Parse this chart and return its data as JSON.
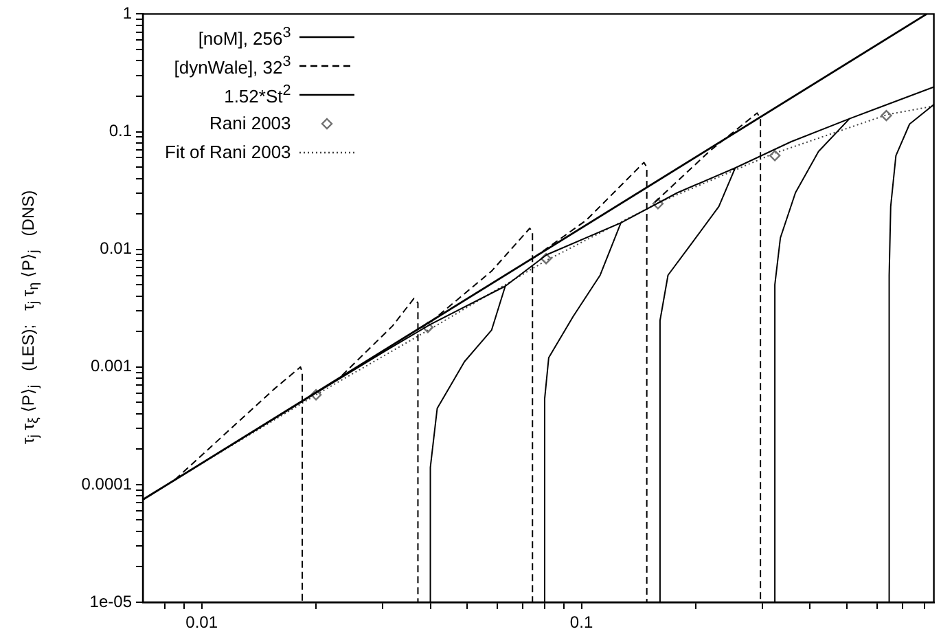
{
  "chart_data": {
    "type": "line",
    "ylabel": "τ$_{j}$ τ$_{ξ}$ ⟨P⟩$_{j}$   (LES);   τ$_{j}$ τ$_{η}$ ⟨P⟩$_{j}$   (DNS)",
    "log": "xy",
    "grid": false,
    "legend": "top left",
    "xlim": [
      0.007,
      0.847
    ],
    "ylim": [
      1e-05,
      1
    ],
    "xticks": [
      {
        "value": 0.008,
        "label": null
      },
      {
        "value": 0.009,
        "label": null
      },
      0.01,
      {
        "value": 0.02,
        "label": null
      },
      {
        "value": 0.03,
        "label": null
      },
      {
        "value": 0.04,
        "label": null
      },
      {
        "value": 0.05,
        "label": null
      },
      {
        "value": 0.06,
        "label": null
      },
      {
        "value": 0.07,
        "label": null
      },
      {
        "value": 0.08,
        "label": null
      },
      {
        "value": 0.09,
        "label": null
      },
      0.1,
      {
        "value": 0.2,
        "label": null
      },
      {
        "value": 0.3,
        "label": null
      },
      {
        "value": 0.4,
        "label": null
      },
      {
        "value": 0.5,
        "label": null
      },
      {
        "value": 0.6,
        "label": null
      },
      {
        "value": 0.7,
        "label": null
      },
      {
        "value": 0.8,
        "label": null
      }
    ],
    "yticks": [
      {
        "value": 1e-05,
        "label": "1e-05"
      },
      {
        "value": 2e-05,
        "label": null
      },
      {
        "value": 3e-05,
        "label": null
      },
      {
        "value": 4e-05,
        "label": null
      },
      {
        "value": 5e-05,
        "label": null
      },
      {
        "value": 6e-05,
        "label": null
      },
      {
        "value": 7e-05,
        "label": null
      },
      {
        "value": 8e-05,
        "label": null
      },
      {
        "value": 9e-05,
        "label": null
      },
      0.0001,
      {
        "value": 0.0002,
        "label": null
      },
      {
        "value": 0.0003,
        "label": null
      },
      {
        "value": 0.0004,
        "label": null
      },
      {
        "value": 0.0005,
        "label": null
      },
      {
        "value": 0.0006,
        "label": null
      },
      {
        "value": 0.0007,
        "label": null
      },
      {
        "value": 0.0008,
        "label": null
      },
      {
        "value": 0.0009,
        "label": null
      },
      0.001,
      {
        "value": 0.002,
        "label": null
      },
      {
        "value": 0.003,
        "label": null
      },
      {
        "value": 0.004,
        "label": null
      },
      {
        "value": 0.005,
        "label": null
      },
      {
        "value": 0.006,
        "label": null
      },
      {
        "value": 0.007,
        "label": null
      },
      {
        "value": 0.008,
        "label": null
      },
      {
        "value": 0.009,
        "label": null
      },
      0.01,
      {
        "value": 0.02,
        "label": null
      },
      {
        "value": 0.03,
        "label": null
      },
      {
        "value": 0.04,
        "label": null
      },
      {
        "value": 0.05,
        "label": null
      },
      {
        "value": 0.06,
        "label": null
      },
      {
        "value": 0.07,
        "label": null
      },
      {
        "value": 0.08,
        "label": null
      },
      {
        "value": 0.09,
        "label": null
      },
      0.1,
      {
        "value": 0.2,
        "label": null
      },
      {
        "value": 0.3,
        "label": null
      },
      {
        "value": 0.4,
        "label": null
      },
      {
        "value": 0.5,
        "label": null
      },
      {
        "value": 0.6,
        "label": null
      },
      {
        "value": 0.7,
        "label": null
      },
      {
        "value": 0.8,
        "label": null
      },
      {
        "value": 0.9,
        "label": null
      },
      1
    ],
    "series": [
      {
        "name": "[noM], 256$^{3}$",
        "type": "line",
        "line_style": "solid",
        "color": "#000000",
        "x": [
          0.007,
          0.01,
          0.02,
          0.03,
          0.04,
          0.063,
          0.058,
          0.0492,
          0.0417,
          0.04,
          0.04
        ],
        "values": [
          7.45e-05,
          0.000152,
          0.0006,
          0.00133,
          0.0023,
          0.00486,
          0.00206,
          0.00111,
          0.000444,
          0.00014,
          1e-05
        ]
      },
      {
        "type": "line",
        "line_style": "solid",
        "color": "#000000",
        "x": [
          0.063,
          0.081,
          0.127,
          0.112,
          0.0951,
          0.082,
          0.08,
          0.08
        ],
        "values": [
          0.00486,
          0.009,
          0.0168,
          0.00603,
          0.00269,
          0.0012,
          0.000536,
          1e-05
        ]
      },
      {
        "type": "line",
        "line_style": "solid",
        "color": "#000000",
        "x": [
          0.127,
          0.179,
          0.254,
          0.23,
          0.195,
          0.169,
          0.161,
          0.161
        ],
        "values": [
          0.0168,
          0.0303,
          0.0492,
          0.0231,
          0.0112,
          0.00603,
          0.00248,
          1e-05
        ]
      },
      {
        "type": "line",
        "line_style": "solid",
        "color": "#000000",
        "x": [
          0.254,
          0.356,
          0.508,
          0.421,
          0.366,
          0.334,
          0.323,
          0.323
        ],
        "values": [
          0.0492,
          0.082,
          0.129,
          0.0679,
          0.0303,
          0.0125,
          0.005,
          1e-05
        ]
      },
      {
        "type": "line",
        "line_style": "solid",
        "color": "#000000",
        "x": [
          0.508,
          0.847
        ],
        "values": [
          0.129,
          0.24
        ]
      },
      {
        "type": "line",
        "line_style": "solid",
        "color": "#000000",
        "x": [
          0.847,
          0.731,
          0.673,
          0.652,
          0.646,
          0.646
        ],
        "values": [
          0.17,
          0.116,
          0.0626,
          0.0231,
          0.00603,
          1e-05
        ]
      },
      {
        "name": "[dynWale], 32$^{3}$",
        "type": "line",
        "line_style": "dashed",
        "color": "#000000",
        "x": [
          0.0085,
          0.0155,
          0.0182,
          0.0184,
          0.0184
        ],
        "values": [
          0.00011,
          0.000647,
          0.001,
          0.0009,
          1e-05
        ]
      },
      {
        "type": "line",
        "line_style": "dashed",
        "color": "#000000",
        "x": [
          0.0234,
          0.0318,
          0.0362,
          0.0371,
          0.0371
        ],
        "values": [
          0.000847,
          0.00223,
          0.00382,
          0.0035,
          1e-05
        ]
      },
      {
        "type": "line",
        "line_style": "dashed",
        "color": "#000000",
        "x": [
          0.04,
          0.058,
          0.0731,
          0.0743,
          0.0743
        ],
        "values": [
          0.0024,
          0.00653,
          0.0151,
          0.014,
          1e-05
        ]
      },
      {
        "type": "line",
        "line_style": "dashed",
        "color": "#000000",
        "x": [
          0.075,
          0.103,
          0.146,
          0.1486,
          0.1486
        ],
        "values": [
          0.0085,
          0.0177,
          0.0547,
          0.05,
          1e-05
        ]
      },
      {
        "type": "line",
        "line_style": "dashed",
        "color": "#000000",
        "x": [
          0.156,
          0.217,
          0.29,
          0.296,
          0.296
        ],
        "values": [
          0.0251,
          0.0679,
          0.144,
          0.13,
          1e-05
        ]
      },
      {
        "name": "1.52*St$^{2}$",
        "type": "line",
        "line_style": "solid",
        "color": "#000000",
        "x": [
          0.007,
          0.811
        ],
        "values": [
          7.45e-05,
          1
        ]
      },
      {
        "name": "Rani 2003",
        "type": "scatter",
        "marker": "diamond",
        "color": "#707070",
        "x": [
          0.02,
          0.0394,
          0.0807,
          0.159,
          0.323,
          0.635
        ],
        "values": [
          0.00058,
          0.00217,
          0.00833,
          0.0244,
          0.0626,
          0.137
        ]
      },
      {
        "name": "Fit of Rani 2003",
        "type": "line",
        "line_style": "dotted",
        "color": "#404040",
        "x": [
          0.0085,
          0.02,
          0.04,
          0.08,
          0.16,
          0.32,
          0.64,
          0.847
        ],
        "values": [
          0.00011,
          0.00058,
          0.0021,
          0.0079,
          0.025,
          0.065,
          0.14,
          0.165
        ]
      }
    ]
  }
}
